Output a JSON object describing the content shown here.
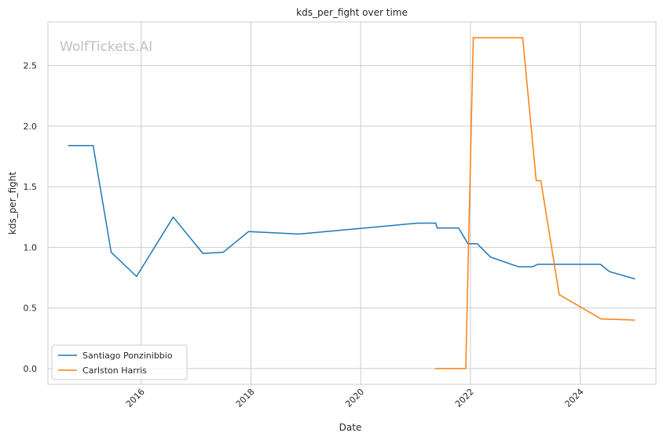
{
  "chart_data": {
    "type": "line",
    "title": "kds_per_fight over time",
    "xlabel": "Date",
    "ylabel": "kds_per_fight",
    "watermark": "WolfTickets.AI",
    "x_ticks": [
      "2016",
      "2018",
      "2020",
      "2022",
      "2024"
    ],
    "y_ticks": [
      "0.0",
      "0.5",
      "1.0",
      "1.5",
      "2.0",
      "2.5"
    ],
    "xlim": [
      "2014-04-20",
      "2025-05-20"
    ],
    "ylim": [
      -0.13,
      2.86
    ],
    "grid": true,
    "legend_position": "lower-left",
    "series": [
      {
        "name": "Santiago Ponzinibbio",
        "color": "#1f77b4",
        "points": [
          [
            "2014-09-01",
            1.84
          ],
          [
            "2015-02-15",
            1.84
          ],
          [
            "2015-06-15",
            0.96
          ],
          [
            "2015-12-01",
            0.76
          ],
          [
            "2016-08-01",
            1.25
          ],
          [
            "2017-02-15",
            0.95
          ],
          [
            "2017-07-01",
            0.96
          ],
          [
            "2017-12-15",
            1.13
          ],
          [
            "2018-11-15",
            1.11
          ],
          [
            "2021-01-15",
            1.2
          ],
          [
            "2021-05-15",
            1.2
          ],
          [
            "2021-05-25",
            1.16
          ],
          [
            "2021-10-15",
            1.16
          ],
          [
            "2021-12-15",
            1.03
          ],
          [
            "2022-02-15",
            1.03
          ],
          [
            "2022-05-15",
            0.92
          ],
          [
            "2022-11-15",
            0.84
          ],
          [
            "2023-02-20",
            0.84
          ],
          [
            "2023-03-25",
            0.86
          ],
          [
            "2024-05-15",
            0.86
          ],
          [
            "2024-07-15",
            0.8
          ],
          [
            "2025-01-01",
            0.74
          ]
        ]
      },
      {
        "name": "Carlston Harris",
        "color": "#ff7f0e",
        "points": [
          [
            "2021-05-10",
            0.0
          ],
          [
            "2021-12-01",
            0.0
          ],
          [
            "2022-01-20",
            2.73
          ],
          [
            "2022-12-15",
            2.73
          ],
          [
            "2023-03-15",
            1.55
          ],
          [
            "2023-04-15",
            1.55
          ],
          [
            "2023-08-15",
            0.61
          ],
          [
            "2024-05-20",
            0.41
          ],
          [
            "2025-01-01",
            0.4
          ]
        ]
      }
    ]
  }
}
